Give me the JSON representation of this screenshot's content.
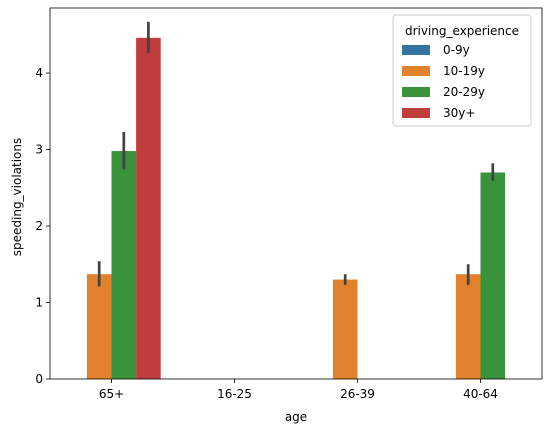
{
  "chart_data": {
    "type": "bar",
    "xlabel": "age",
    "ylabel": "speeding_violations",
    "categories": [
      "65+",
      "16-25",
      "26-39",
      "40-64"
    ],
    "ylim": [
      0,
      4.85
    ],
    "yticks": [
      0,
      1,
      2,
      3,
      4
    ],
    "legend": {
      "title": "driving_experience",
      "placement": "top-right"
    },
    "grid": false,
    "series": [
      {
        "name": "0-9y",
        "color": "#3274a1",
        "values": [
          null,
          null,
          null,
          null
        ],
        "errors": [
          null,
          null,
          null,
          null
        ]
      },
      {
        "name": "10-19y",
        "color": "#e1812c",
        "values": [
          1.37,
          null,
          1.3,
          1.37
        ],
        "errors": [
          [
            1.21,
            1.54
          ],
          null,
          [
            1.23,
            1.37
          ],
          [
            1.23,
            1.5
          ]
        ]
      },
      {
        "name": "20-29y",
        "color": "#3a923a",
        "values": [
          2.98,
          null,
          null,
          2.7
        ],
        "errors": [
          [
            2.74,
            3.23
          ],
          null,
          null,
          [
            2.59,
            2.82
          ]
        ]
      },
      {
        "name": "30y+",
        "color": "#c03d3e",
        "values": [
          4.46,
          null,
          null,
          null
        ],
        "errors": [
          [
            4.26,
            4.67
          ],
          null,
          null,
          null
        ]
      }
    ]
  }
}
